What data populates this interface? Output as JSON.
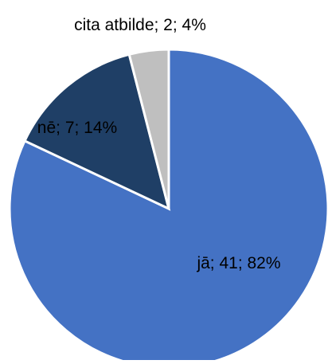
{
  "chart_data": {
    "type": "pie",
    "title": "",
    "categories": [
      "jā",
      "nē",
      "cita atbilde"
    ],
    "values": [
      41,
      7,
      2
    ],
    "percentages": [
      82,
      14,
      4
    ],
    "labels": [
      "jā; 41; 82%",
      "nē; 7; 14%",
      "cita atbilde; 2; 4%"
    ],
    "colors": [
      "#4472C4",
      "#1F3F66",
      "#BFBFBF"
    ],
    "slice_border_color": "#FFFFFF",
    "start_angle_deg": 0,
    "direction": "clockwise",
    "legend": "none"
  }
}
